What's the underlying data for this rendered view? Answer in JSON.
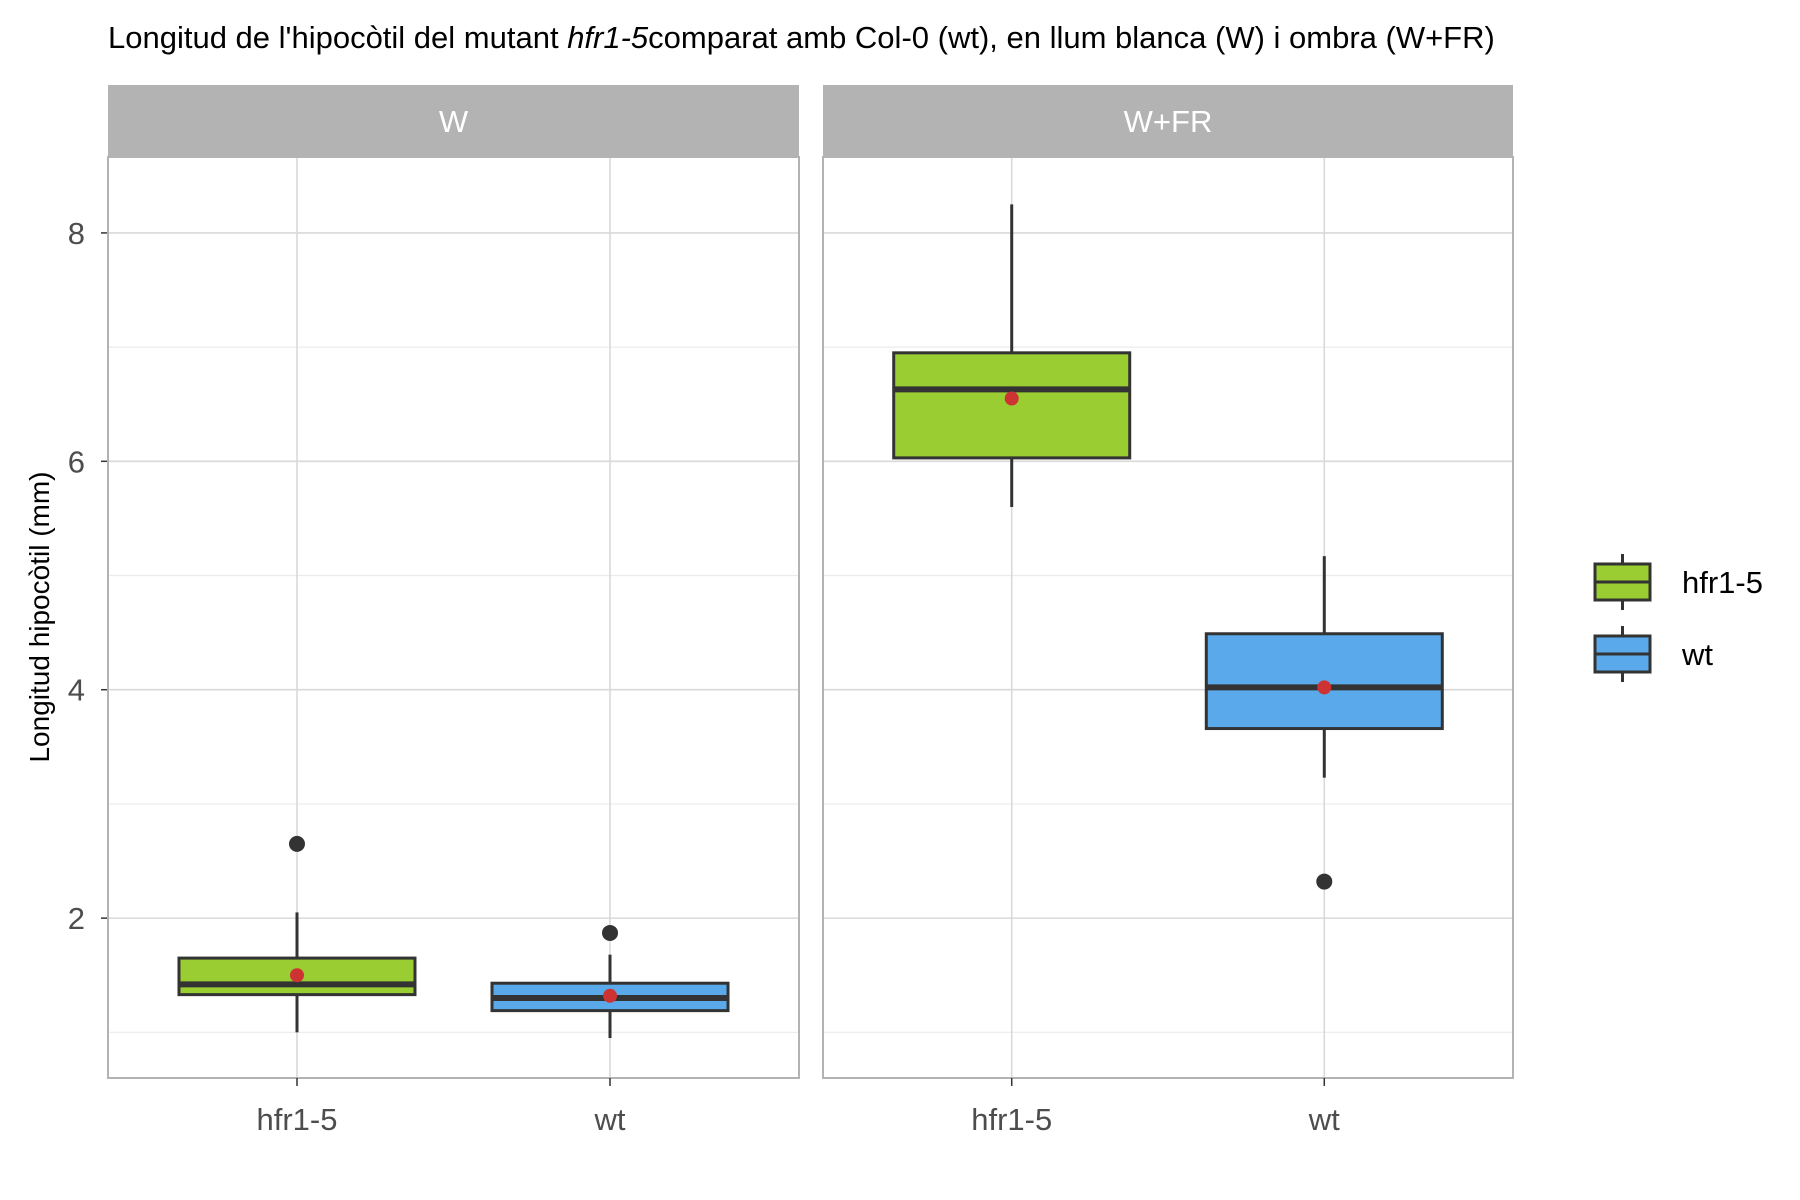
{
  "title": {
    "prefix": "Longitud de l'hipocòtil del mutant ",
    "italic": "hfr1-5",
    "suffix": "comparat amb Col-0 (wt), en llum blanca (W) i ombra (W+FR)"
  },
  "colors": {
    "hfr1-5": "#9ACD32",
    "wt": "#5AAAEB",
    "mean_point": "#CD3333",
    "outline": "#333333",
    "strip": "#B3B3B3",
    "grid": "#D9D9D9",
    "panel_border": "#B3B3B3"
  },
  "chart_data": {
    "type": "boxplot",
    "ylabel": "Longitud hipocòtil (mm)",
    "xlabel": "",
    "ylim": [
      0.6,
      8.6
    ],
    "y_ticks": [
      2,
      4,
      6,
      8
    ],
    "grid": true,
    "legend_position": "right",
    "legend": [
      "hfr1-5",
      "wt"
    ],
    "categories": [
      "hfr1-5",
      "wt"
    ],
    "facets": [
      {
        "label": "W",
        "boxes": [
          {
            "group": "hfr1-5",
            "whisker_low": 1.0,
            "q1": 1.33,
            "median": 1.42,
            "q3": 1.65,
            "whisker_high": 2.05,
            "mean": 1.5,
            "outliers": [
              2.65
            ]
          },
          {
            "group": "wt",
            "whisker_low": 0.95,
            "q1": 1.19,
            "median": 1.3,
            "q3": 1.43,
            "whisker_high": 1.68,
            "mean": 1.32,
            "outliers": [
              1.87
            ]
          }
        ]
      },
      {
        "label": "W+FR",
        "boxes": [
          {
            "group": "hfr1-5",
            "whisker_low": 5.6,
            "q1": 6.03,
            "median": 6.63,
            "q3": 6.95,
            "whisker_high": 8.25,
            "mean": 6.55,
            "outliers": []
          },
          {
            "group": "wt",
            "whisker_low": 3.23,
            "q1": 3.66,
            "median": 4.02,
            "q3": 4.49,
            "whisker_high": 5.17,
            "mean": 4.02,
            "outliers": [
              2.32
            ]
          }
        ]
      }
    ]
  }
}
